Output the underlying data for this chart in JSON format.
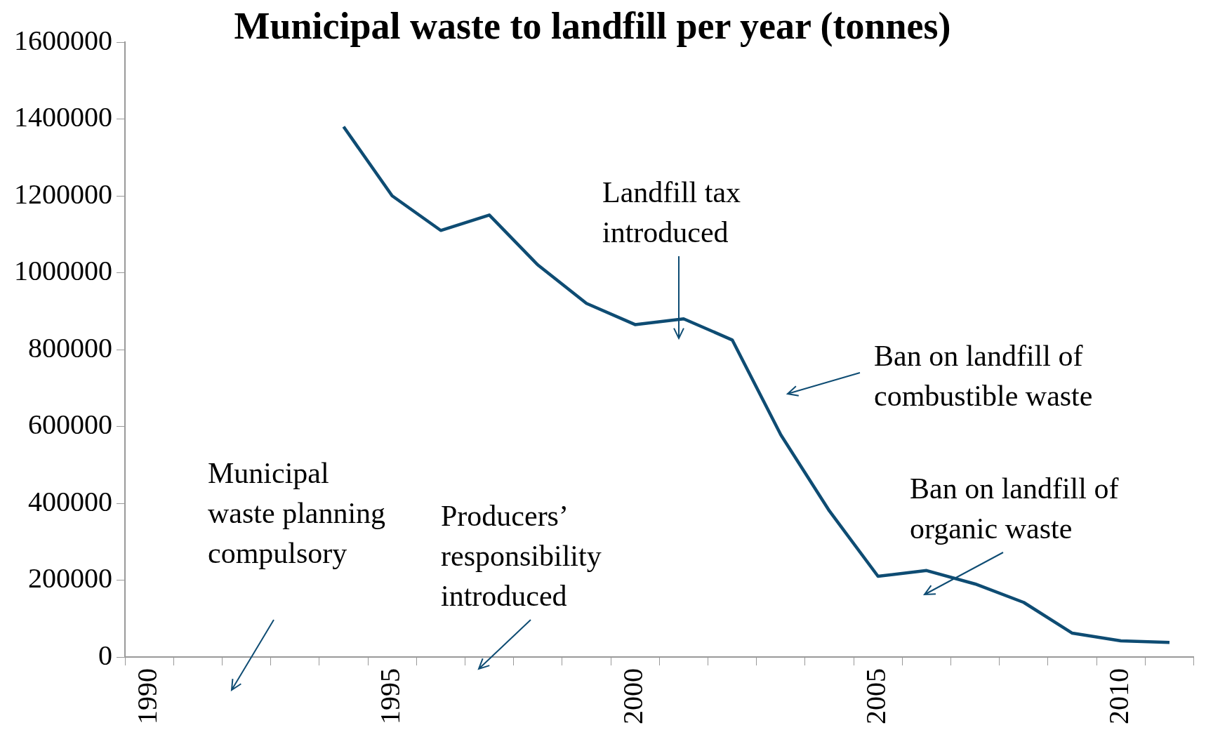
{
  "chart_data": {
    "type": "line",
    "title": "Municipal waste to landfill per year (tonnes)",
    "categories": [
      "1990",
      null,
      null,
      null,
      null,
      "1995",
      null,
      null,
      null,
      null,
      "2000",
      null,
      null,
      null,
      null,
      "2005",
      null,
      null,
      null,
      null,
      "2010",
      null
    ],
    "series": [
      {
        "color": "#0e4c73",
        "values": [
          null,
          null,
          null,
          null,
          1380000,
          1200000,
          1110000,
          1150000,
          1020000,
          920000,
          865000,
          880000,
          825000,
          578000,
          380000,
          210000,
          225000,
          190000,
          142000,
          62000,
          42000,
          38000
        ]
      }
    ],
    "ylim": [
      0,
      1600000
    ],
    "yticks": [
      0,
      200000,
      400000,
      600000,
      800000,
      1000000,
      1200000,
      1400000,
      1600000
    ],
    "grid": false,
    "annotations": [
      "Municipal waste planning compulsory",
      "Producers’ responsibility introduced",
      "Landfill tax introduced",
      "Ban on landfill of combustible waste",
      "Ban on landfill of organic waste"
    ]
  }
}
